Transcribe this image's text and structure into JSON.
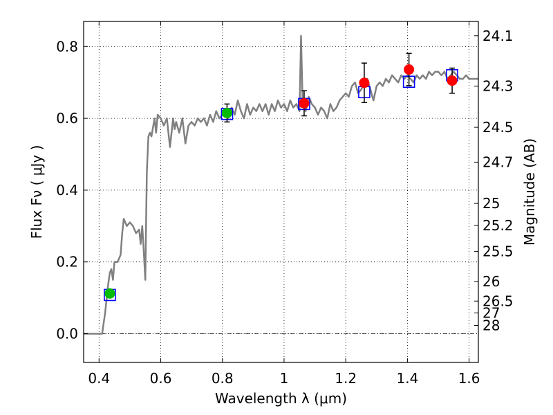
{
  "chart_data": {
    "type": "line",
    "xlabel": "Wavelength  λ (μm)",
    "ylabel": "Flux  Fν  ( μJy )",
    "ylabel_right": "Magnitude (AB)",
    "xlim": [
      0.35,
      1.63
    ],
    "ylim": [
      -0.08,
      0.87
    ],
    "grid": true,
    "x_ticks": [
      0.4,
      0.6,
      0.8,
      1.0,
      1.2,
      1.4,
      1.6
    ],
    "x_tick_labels": [
      "0.4",
      "0.6",
      "0.8",
      "1",
      "1.2",
      "1.4",
      "1.6"
    ],
    "y_ticks": [
      0.0,
      0.2,
      0.4,
      0.6,
      0.8
    ],
    "y_tick_labels": [
      "0.0",
      "0.2",
      "0.4",
      "0.6",
      "0.8"
    ],
    "right_ticks": [
      {
        "label": "24.1",
        "flux": 0.83
      },
      {
        "label": "24.3",
        "flux": 0.69
      },
      {
        "label": "24.5",
        "flux": 0.575
      },
      {
        "label": "24.7",
        "flux": 0.478
      },
      {
        "label": "25",
        "flux": 0.363
      },
      {
        "label": "25.2",
        "flux": 0.302
      },
      {
        "label": "25.5",
        "flux": 0.229
      },
      {
        "label": "26",
        "flux": 0.145
      },
      {
        "label": "26.5",
        "flux": 0.091
      },
      {
        "label": "27",
        "flux": 0.058
      },
      {
        "label": "28",
        "flux": 0.023
      }
    ],
    "series": [
      {
        "type": "line",
        "color": "#808080",
        "x": [
          0.35,
          0.41,
          0.42,
          0.43,
          0.435,
          0.44,
          0.445,
          0.45,
          0.46,
          0.47,
          0.475,
          0.48,
          0.49,
          0.5,
          0.51,
          0.52,
          0.53,
          0.535,
          0.54,
          0.545,
          0.55,
          0.555,
          0.56,
          0.565,
          0.57,
          0.58,
          0.585,
          0.59,
          0.6,
          0.61,
          0.62,
          0.63,
          0.64,
          0.645,
          0.65,
          0.66,
          0.67,
          0.68,
          0.69,
          0.7,
          0.71,
          0.72,
          0.73,
          0.74,
          0.75,
          0.76,
          0.77,
          0.78,
          0.79,
          0.8,
          0.81,
          0.82,
          0.83,
          0.84,
          0.85,
          0.86,
          0.87,
          0.88,
          0.89,
          0.9,
          0.91,
          0.92,
          0.93,
          0.94,
          0.95,
          0.96,
          0.97,
          0.98,
          0.99,
          1.0,
          1.01,
          1.02,
          1.03,
          1.04,
          1.05,
          1.055,
          1.06,
          1.065,
          1.07,
          1.08,
          1.09,
          1.1,
          1.11,
          1.12,
          1.13,
          1.14,
          1.15,
          1.16,
          1.17,
          1.18,
          1.19,
          1.2,
          1.21,
          1.22,
          1.23,
          1.24,
          1.25,
          1.26,
          1.27,
          1.28,
          1.29,
          1.3,
          1.31,
          1.32,
          1.33,
          1.34,
          1.35,
          1.36,
          1.37,
          1.38,
          1.39,
          1.4,
          1.41,
          1.42,
          1.43,
          1.44,
          1.45,
          1.46,
          1.47,
          1.48,
          1.49,
          1.5,
          1.51,
          1.52,
          1.53,
          1.54,
          1.55,
          1.56,
          1.57,
          1.58,
          1.59,
          1.6,
          1.61,
          1.63
        ],
        "y": [
          0.0,
          0.0,
          0.06,
          0.14,
          0.17,
          0.18,
          0.15,
          0.2,
          0.2,
          0.22,
          0.28,
          0.32,
          0.3,
          0.31,
          0.3,
          0.28,
          0.29,
          0.25,
          0.3,
          0.23,
          0.15,
          0.45,
          0.55,
          0.56,
          0.55,
          0.6,
          0.56,
          0.61,
          0.6,
          0.58,
          0.6,
          0.52,
          0.6,
          0.57,
          0.59,
          0.56,
          0.6,
          0.53,
          0.58,
          0.59,
          0.58,
          0.6,
          0.59,
          0.6,
          0.58,
          0.61,
          0.59,
          0.62,
          0.6,
          0.61,
          0.62,
          0.6,
          0.63,
          0.61,
          0.65,
          0.62,
          0.6,
          0.64,
          0.61,
          0.63,
          0.62,
          0.64,
          0.62,
          0.64,
          0.61,
          0.64,
          0.62,
          0.65,
          0.63,
          0.64,
          0.62,
          0.65,
          0.63,
          0.64,
          0.62,
          0.83,
          0.65,
          0.63,
          0.62,
          0.66,
          0.64,
          0.63,
          0.61,
          0.63,
          0.62,
          0.6,
          0.64,
          0.62,
          0.63,
          0.65,
          0.66,
          0.67,
          0.66,
          0.69,
          0.7,
          0.67,
          0.68,
          0.7,
          0.71,
          0.68,
          0.65,
          0.69,
          0.7,
          0.69,
          0.71,
          0.7,
          0.72,
          0.71,
          0.7,
          0.72,
          0.71,
          0.72,
          0.71,
          0.7,
          0.72,
          0.71,
          0.72,
          0.71,
          0.73,
          0.72,
          0.73,
          0.73,
          0.72,
          0.73,
          0.71,
          0.72,
          0.73,
          0.72,
          0.71,
          0.71,
          0.72,
          0.71,
          0.71,
          0.71
        ]
      },
      {
        "type": "scatter",
        "marker": "open-square",
        "color": "#0000ff",
        "x": [
          0.435,
          0.815,
          1.065,
          1.26,
          1.405,
          1.545
        ],
        "y": [
          0.108,
          0.612,
          0.64,
          0.673,
          0.702,
          0.72
        ]
      },
      {
        "type": "scatter",
        "marker": "circle",
        "color": "#00bb00",
        "x": [
          0.435,
          0.815
        ],
        "y": [
          0.112,
          0.615
        ],
        "yerr": [
          0.01,
          0.025
        ]
      },
      {
        "type": "scatter",
        "marker": "circle",
        "color": "#ff0000",
        "x": [
          1.065,
          1.26,
          1.405,
          1.545
        ],
        "y": [
          0.642,
          0.699,
          0.736,
          0.705
        ],
        "yerr": [
          0.035,
          0.055,
          0.045,
          0.035
        ]
      }
    ]
  }
}
